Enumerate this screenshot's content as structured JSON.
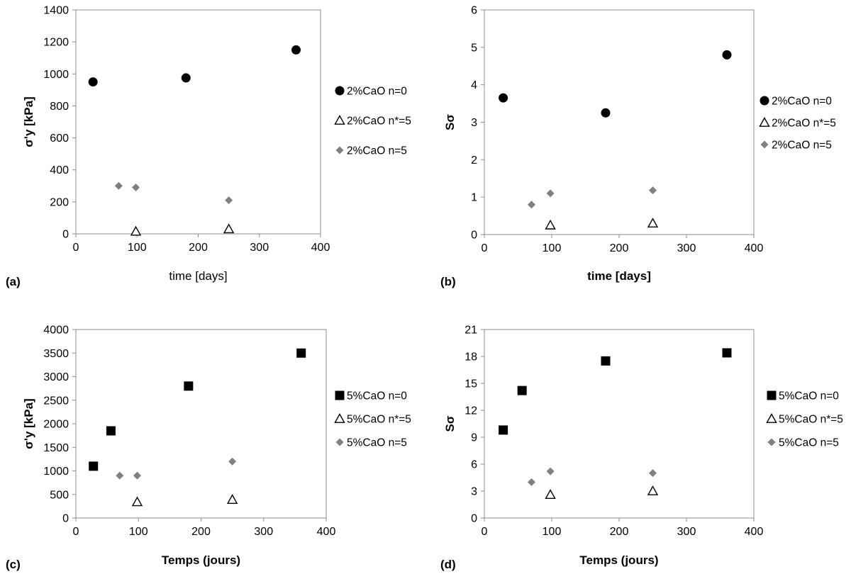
{
  "chart_data": [
    {
      "panel_label": "(a)",
      "type": "scatter",
      "xlabel": "time [days]",
      "ylabel": "σ'y [kPa]",
      "xlim": [
        0,
        400
      ],
      "ylim": [
        0,
        1400
      ],
      "xticks": [
        0,
        100,
        200,
        300,
        400
      ],
      "yticks": [
        0,
        200,
        400,
        600,
        800,
        1000,
        1200,
        1400
      ],
      "grid": false,
      "legend": "right",
      "series": [
        {
          "name": "2%CaO n=0",
          "marker": "circle",
          "color": "#000000",
          "x": [
            28,
            180,
            360
          ],
          "y": [
            950,
            975,
            1150
          ]
        },
        {
          "name": "2%CaO n*=5",
          "marker": "triangle-open",
          "color": "#000000",
          "x": [
            98,
            250
          ],
          "y": [
            15,
            30
          ]
        },
        {
          "name": "2%CaO n=5",
          "marker": "diamond",
          "color": "#808080",
          "x": [
            70,
            98,
            250
          ],
          "y": [
            300,
            290,
            210
          ]
        }
      ]
    },
    {
      "panel_label": "(b)",
      "type": "scatter",
      "xlabel": "time [days]",
      "ylabel": "Sσ",
      "xlim": [
        0,
        400
      ],
      "ylim": [
        0,
        6
      ],
      "xticks": [
        0,
        100,
        200,
        300,
        400
      ],
      "yticks": [
        0,
        1,
        2,
        3,
        4,
        5,
        6
      ],
      "grid": false,
      "legend": "right",
      "series": [
        {
          "name": "2%CaO n=0",
          "marker": "circle",
          "color": "#000000",
          "x": [
            28,
            180,
            360
          ],
          "y": [
            3.65,
            3.25,
            4.8
          ]
        },
        {
          "name": "2%CaO n*=5",
          "marker": "triangle-open",
          "color": "#000000",
          "x": [
            98,
            250
          ],
          "y": [
            0.25,
            0.3
          ]
        },
        {
          "name": "2%CaO n=5",
          "marker": "diamond",
          "color": "#808080",
          "x": [
            70,
            98,
            250
          ],
          "y": [
            0.8,
            1.1,
            1.18
          ]
        }
      ]
    },
    {
      "panel_label": "(c)",
      "type": "scatter",
      "xlabel": "Temps (jours)",
      "ylabel": "σ'y [kPa]",
      "xlim": [
        0,
        400
      ],
      "ylim": [
        0,
        4000
      ],
      "xticks": [
        0,
        100,
        200,
        300,
        400
      ],
      "yticks": [
        0,
        500,
        1000,
        1500,
        2000,
        2500,
        3000,
        3500,
        4000
      ],
      "grid": false,
      "legend": "right",
      "series": [
        {
          "name": "5%CaO n=0",
          "marker": "square",
          "color": "#000000",
          "x": [
            28,
            56,
            180,
            360
          ],
          "y": [
            1100,
            1850,
            2800,
            3500
          ]
        },
        {
          "name": "5%CaO n*=5",
          "marker": "triangle-open",
          "color": "#000000",
          "x": [
            98,
            250
          ],
          "y": [
            340,
            390
          ]
        },
        {
          "name": "5%CaO n=5",
          "marker": "diamond",
          "color": "#808080",
          "x": [
            70,
            98,
            250
          ],
          "y": [
            900,
            900,
            1200
          ]
        }
      ]
    },
    {
      "panel_label": "(d)",
      "type": "scatter",
      "xlabel": "Temps (jours)",
      "ylabel": "Sσ",
      "xlim": [
        0,
        400
      ],
      "ylim": [
        0,
        21
      ],
      "xticks": [
        0,
        100,
        200,
        300,
        400
      ],
      "yticks": [
        0,
        3,
        6,
        9,
        12,
        15,
        18,
        21
      ],
      "grid": false,
      "legend": "right",
      "series": [
        {
          "name": "5%CaO n=0",
          "marker": "square",
          "color": "#000000",
          "x": [
            28,
            56,
            180,
            360
          ],
          "y": [
            9.8,
            14.2,
            17.5,
            18.4
          ]
        },
        {
          "name": "5%CaO n*=5",
          "marker": "triangle-open",
          "color": "#000000",
          "x": [
            98,
            250
          ],
          "y": [
            2.6,
            3.0
          ]
        },
        {
          "name": "5%CaO n=5",
          "marker": "diamond",
          "color": "#808080",
          "x": [
            70,
            98,
            250
          ],
          "y": [
            4.0,
            5.2,
            5.0
          ]
        }
      ]
    }
  ]
}
